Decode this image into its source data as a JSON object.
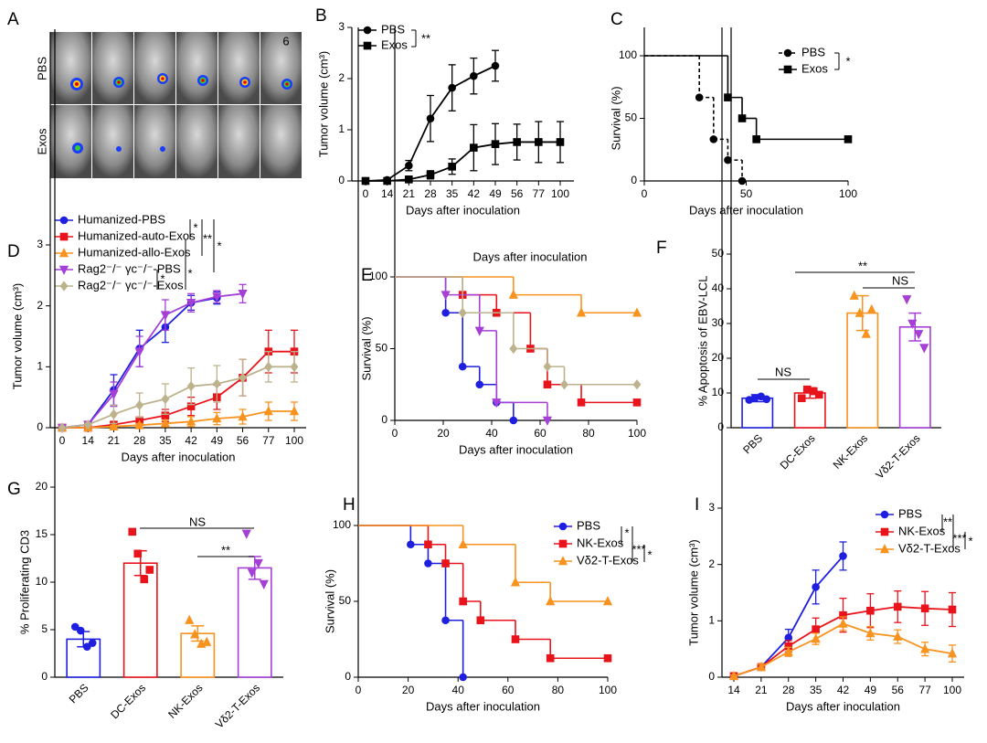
{
  "image_panel": {
    "label": "A",
    "rows": [
      "PBS",
      "Exos"
    ],
    "count_label": "6"
  },
  "chart_data": [
    {
      "label": "B",
      "type": "line",
      "xlabel": "Days after inoculation",
      "ylabel": "Tumor volume (cm³)",
      "categories": [
        "0",
        "14",
        "21",
        "28",
        "35",
        "42",
        "49",
        "56",
        "77",
        "100"
      ],
      "ylim": [
        0,
        3
      ],
      "yticks": [
        0,
        1,
        2,
        3
      ],
      "series": [
        {
          "name": "PBS",
          "color": "#000000",
          "marker": "circle",
          "values": [
            0,
            0.02,
            0.3,
            1.22,
            1.82,
            2.05,
            2.25,
            null,
            null,
            null
          ],
          "errors": [
            0,
            0.02,
            0.1,
            0.45,
            0.45,
            0.35,
            0.3,
            null,
            null,
            null
          ]
        },
        {
          "name": "Exos",
          "color": "#000000",
          "marker": "square",
          "values": [
            0,
            0,
            0.03,
            0.12,
            0.28,
            0.65,
            0.72,
            0.76,
            0.76,
            0.76
          ],
          "errors": [
            0,
            0,
            0.02,
            0.08,
            0.15,
            0.45,
            0.4,
            0.35,
            0.4,
            0.4
          ]
        }
      ],
      "annotations": [
        "**"
      ]
    },
    {
      "label": "C",
      "type": "step",
      "xlabel": "Days after inoculation",
      "ylabel": "Survival (%)",
      "xlim": [
        0,
        100
      ],
      "xticks": [
        0,
        50,
        100
      ],
      "ylim": [
        0,
        100
      ],
      "yticks": [
        0,
        50,
        100
      ],
      "series": [
        {
          "name": "PBS",
          "color": "#000000",
          "marker": "circle",
          "dashed": true,
          "x": [
            0,
            27,
            34,
            41,
            48
          ],
          "values": [
            100,
            66.7,
            33.3,
            16.7,
            0
          ]
        },
        {
          "name": "Exos",
          "color": "#000000",
          "marker": "square",
          "dashed": false,
          "x": [
            0,
            41,
            48,
            55,
            100
          ],
          "values": [
            100,
            66.7,
            50,
            33.3,
            33.3
          ]
        }
      ],
      "annotations": [
        "*"
      ]
    },
    {
      "label": "D",
      "type": "line",
      "xlabel": "Days after inoculation",
      "ylabel": "Tumor volume (cm³)",
      "categories": [
        "0",
        "14",
        "21",
        "28",
        "35",
        "42",
        "49",
        "56",
        "77",
        "100"
      ],
      "ylim": [
        0,
        3
      ],
      "yticks": [
        0,
        1,
        2,
        3
      ],
      "series": [
        {
          "name": "Humanized-PBS",
          "color": "#1f1fe0",
          "marker": "circle",
          "values": [
            0,
            0.05,
            0.62,
            1.3,
            1.65,
            2.05,
            2.13,
            null,
            null,
            null
          ],
          "errors": [
            0,
            0.02,
            0.25,
            0.3,
            0.25,
            0.12,
            0.1,
            null,
            null,
            null
          ]
        },
        {
          "name": "Humanized-auto-Exos",
          "color": "#e8131b",
          "marker": "square",
          "values": [
            0,
            0,
            0.05,
            0.12,
            0.2,
            0.35,
            0.5,
            0.82,
            1.25,
            1.25
          ],
          "errors": [
            0,
            0,
            0.03,
            0.05,
            0.1,
            0.15,
            0.2,
            0.3,
            0.35,
            0.35
          ]
        },
        {
          "name": "Humanized-allo-Exos",
          "color": "#f7931e",
          "marker": "triangle",
          "values": [
            0,
            0,
            0.02,
            0.04,
            0.07,
            0.1,
            0.15,
            0.18,
            0.27,
            0.27
          ],
          "errors": [
            0,
            0,
            0.02,
            0.03,
            0.05,
            0.08,
            0.1,
            0.12,
            0.15,
            0.15
          ]
        },
        {
          "name": "Rag2⁻/⁻ γc⁻/⁻-PBS",
          "color": "#a53fd6",
          "marker": "triangle-down",
          "values": [
            0,
            0.05,
            0.55,
            1.25,
            1.85,
            2.05,
            2.15,
            2.2,
            null,
            null
          ],
          "errors": [
            0,
            0.02,
            0.2,
            0.25,
            0.25,
            0.15,
            0.1,
            0.15,
            null,
            null
          ]
        },
        {
          "name": "Rag2⁻/⁻ γc⁻/⁻-Exos",
          "color": "#bcb28c",
          "marker": "diamond",
          "values": [
            0,
            0.05,
            0.22,
            0.37,
            0.47,
            0.68,
            0.72,
            0.82,
            1,
            1
          ],
          "errors": [
            0,
            0.02,
            0.15,
            0.2,
            0.25,
            0.3,
            0.3,
            0.3,
            0.25,
            0.25
          ]
        }
      ],
      "annotations": [
        "*",
        "**",
        "*",
        "*",
        "*"
      ]
    },
    {
      "label": "E",
      "type": "step",
      "title": "Days after inoculation",
      "xlabel": "Days after inoculation",
      "ylabel": "Survival (%)",
      "xlim": [
        0,
        100
      ],
      "xticks": [
        0,
        20,
        40,
        60,
        80,
        100
      ],
      "ylim": [
        0,
        100
      ],
      "yticks": [
        0,
        50,
        100
      ],
      "series": [
        {
          "color": "#1f1fe0",
          "marker": "circle",
          "dashed": false,
          "x": [
            0,
            21,
            28,
            35,
            42,
            49
          ],
          "values": [
            100,
            75,
            37.5,
            25,
            12.5,
            0
          ]
        },
        {
          "color": "#e8131b",
          "marker": "square",
          "dashed": false,
          "x": [
            0,
            28,
            42,
            56,
            63,
            77,
            100
          ],
          "values": [
            100,
            87.5,
            75,
            50,
            25,
            12.5,
            12.5
          ]
        },
        {
          "color": "#f7931e",
          "marker": "triangle",
          "dashed": false,
          "x": [
            0,
            49,
            77,
            100
          ],
          "values": [
            100,
            87.5,
            75,
            75
          ]
        },
        {
          "color": "#a53fd6",
          "marker": "triangle-down",
          "dashed": false,
          "x": [
            0,
            21,
            35,
            42,
            63
          ],
          "values": [
            100,
            87.5,
            62.5,
            12.5,
            0
          ]
        },
        {
          "color": "#bcb28c",
          "marker": "diamond",
          "dashed": false,
          "x": [
            0,
            28,
            49,
            63,
            70,
            100
          ],
          "values": [
            100,
            75,
            50,
            37.5,
            25,
            25
          ]
        }
      ]
    },
    {
      "label": "F",
      "type": "bar",
      "ylabel": "% Apoptosis of EBV-LCL",
      "categories": [
        "PBS",
        "DC-Exos",
        "NK-Exos",
        "Vδ2-T-Exos"
      ],
      "colors": [
        "#1f1fe0",
        "#e8131b",
        "#f7931e",
        "#a53fd6"
      ],
      "markers": [
        "circle",
        "square",
        "triangle",
        "triangle-down"
      ],
      "values": [
        8.5,
        10,
        33,
        29
      ],
      "errors": [
        1,
        1.5,
        5,
        4
      ],
      "points": [
        [
          8,
          8.5,
          9,
          8.2
        ],
        [
          8.5,
          11,
          10.5,
          9.5
        ],
        [
          38,
          33,
          27,
          34
        ],
        [
          37,
          30,
          27,
          23
        ]
      ],
      "ylim": [
        0,
        50
      ],
      "yticks": [
        0,
        10,
        20,
        30,
        40,
        50
      ],
      "annotations": [
        "**",
        "NS",
        "NS"
      ]
    },
    {
      "label": "G",
      "type": "bar",
      "ylabel": "% Proliferating CD3",
      "categories": [
        "PBS",
        "DC-Exos",
        "NK-Exos",
        "Vδ2-T-Exos"
      ],
      "colors": [
        "#1f1fe0",
        "#e8131b",
        "#f7931e",
        "#a53fd6"
      ],
      "markers": [
        "circle",
        "square",
        "triangle",
        "triangle-down"
      ],
      "values": [
        4,
        12,
        4.6,
        11.5
      ],
      "errors": [
        0.8,
        1.3,
        0.8,
        1.2
      ],
      "points": [
        [
          5.3,
          4.9,
          3.2,
          3.6
        ],
        [
          15.3,
          13,
          10.3,
          11.3
        ],
        [
          6,
          4.5,
          3.5,
          3.7
        ],
        [
          15.1,
          11,
          12,
          9.8
        ]
      ],
      "ylim": [
        0,
        20
      ],
      "yticks": [
        0,
        5,
        10,
        15,
        20
      ],
      "annotations": [
        "NS",
        "**"
      ]
    },
    {
      "label": "H",
      "type": "step",
      "xlabel": "Days after inoculation",
      "ylabel": "Survival (%)",
      "xlim": [
        0,
        100
      ],
      "xticks": [
        0,
        20,
        40,
        60,
        80,
        100
      ],
      "ylim": [
        0,
        100
      ],
      "yticks": [
        0,
        50,
        100
      ],
      "series": [
        {
          "name": "PBS",
          "color": "#1f1fe0",
          "marker": "circle",
          "dashed": false,
          "x": [
            0,
            21,
            28,
            35,
            42
          ],
          "values": [
            100,
            87.5,
            75,
            37.5,
            0
          ]
        },
        {
          "name": "NK-Exos",
          "color": "#e8131b",
          "marker": "square",
          "dashed": false,
          "x": [
            0,
            28,
            35,
            42,
            49,
            63,
            77,
            100
          ],
          "values": [
            100,
            87.5,
            75,
            50,
            37.5,
            25,
            12.5,
            12.5
          ]
        },
        {
          "name": "Vδ2-T-Exos",
          "color": "#f7931e",
          "marker": "triangle",
          "dashed": false,
          "x": [
            0,
            42,
            63,
            77,
            100
          ],
          "values": [
            100,
            87.5,
            62.5,
            50,
            50
          ]
        }
      ],
      "annotations": [
        "*",
        "***",
        "*"
      ]
    },
    {
      "label": "I",
      "type": "line",
      "xlabel": "Days after inoculation",
      "ylabel": "Tumor volume (cm³)",
      "categories": [
        "14",
        "21",
        "28",
        "35",
        "42",
        "49",
        "56",
        "77",
        "100"
      ],
      "ylim": [
        0,
        3
      ],
      "yticks": [
        0,
        1,
        2,
        3
      ],
      "series": [
        {
          "name": "PBS",
          "color": "#1f1fe0",
          "marker": "circle",
          "values": [
            0.02,
            0.18,
            0.7,
            1.6,
            2.15,
            null,
            null,
            null,
            null
          ],
          "errors": [
            0.02,
            0.05,
            0.15,
            0.3,
            0.25,
            null,
            null,
            null,
            null
          ]
        },
        {
          "name": "NK-Exos",
          "color": "#e8131b",
          "marker": "square",
          "values": [
            0.02,
            0.18,
            0.55,
            0.85,
            1.1,
            1.18,
            1.25,
            1.22,
            1.2
          ],
          "errors": [
            0.02,
            0.05,
            0.1,
            0.2,
            0.3,
            0.3,
            0.28,
            0.3,
            0.3
          ]
        },
        {
          "name": "Vδ2-T-Exos",
          "color": "#f7931e",
          "marker": "triangle",
          "values": [
            0.02,
            0.18,
            0.45,
            0.68,
            0.95,
            0.78,
            0.72,
            0.5,
            0.42
          ],
          "errors": [
            0.02,
            0.05,
            0.08,
            0.1,
            0.12,
            0.12,
            0.12,
            0.12,
            0.15
          ]
        }
      ],
      "annotations": [
        "**",
        "***",
        "*"
      ]
    }
  ]
}
